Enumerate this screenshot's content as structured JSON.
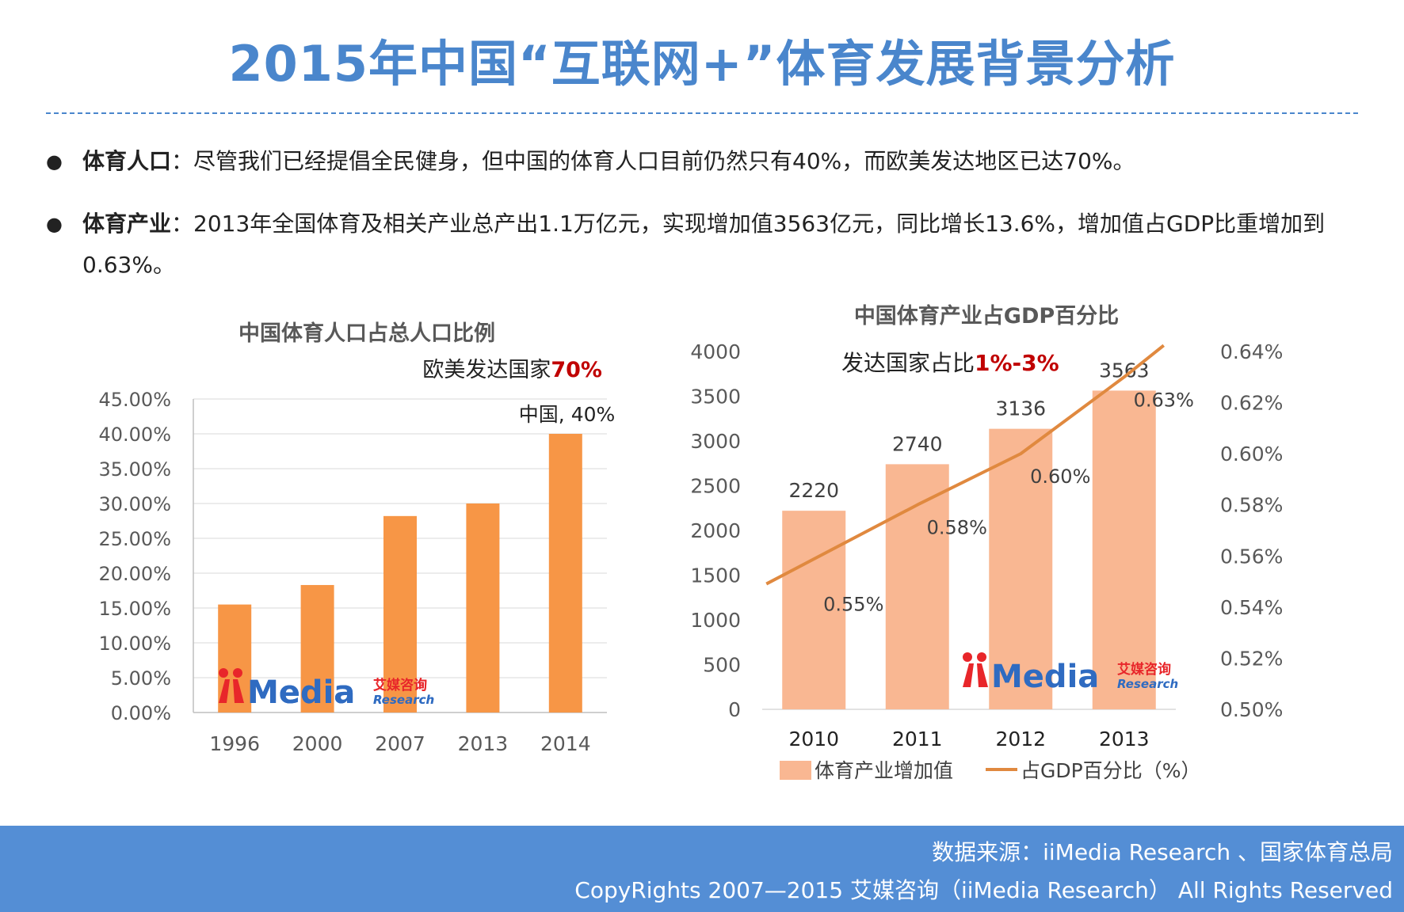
{
  "title": "2015年中国“互联网+”体育发展背景分析",
  "bullets": [
    {
      "label": "体育人口",
      "text": "：尽管我们已经提倡全民健身，但中国的体育人口目前仍然只有40%，而欧美发达地区已达70%。"
    },
    {
      "label": "体育产业",
      "text": "：2013年全国体育及相关产业总产出1.1万亿元，实现增加值3563亿元，同比增长13.6%，增加值占GDP比重增加到0.63%。"
    }
  ],
  "colors": {
    "title": "#4a86cc",
    "bar_left": "#f79646",
    "bar_right": "#f9b792",
    "line": "#e0893f",
    "highlight": "#c00000",
    "footer": "#548ed5"
  },
  "chart_data": [
    {
      "type": "bar",
      "title": "中国体育人口占总人口比例",
      "annotation_prefix": "欧美发达国家",
      "annotation_value": "70%",
      "point_label": "中国, 40%",
      "categories": [
        "1996",
        "2000",
        "2007",
        "2013",
        "2014"
      ],
      "values": [
        15.5,
        18.3,
        28.2,
        30.0,
        40.0
      ],
      "ylim": [
        0,
        45
      ],
      "yticks": [
        "0.00%",
        "5.00%",
        "10.00%",
        "15.00%",
        "20.00%",
        "25.00%",
        "30.00%",
        "35.00%",
        "40.00%",
        "45.00%"
      ],
      "grid": true,
      "logo": {
        "main": "iiMedia",
        "cn": "艾媒咨询",
        "en": "Research"
      }
    },
    {
      "type": "bar+line",
      "title": "中国体育产业占GDP百分比",
      "annotation_prefix": "发达国家占比",
      "annotation_value": "1%-3%",
      "categories": [
        "2010",
        "2011",
        "2012",
        "2013"
      ],
      "bar_series": {
        "name": "体育产业增加值",
        "values": [
          2220,
          2740,
          3136,
          3563
        ],
        "labels": [
          "2220",
          "2740",
          "3136",
          "3563"
        ]
      },
      "line_series": {
        "name": "占GDP百分比（%）",
        "values": [
          0.55,
          0.58,
          0.6,
          0.63
        ],
        "labels": [
          "0.55%",
          "0.58%",
          "0.60%",
          "0.63%"
        ]
      },
      "ylim_left": [
        0,
        4000
      ],
      "yticks_left": [
        "0",
        "500",
        "1000",
        "1500",
        "2000",
        "2500",
        "3000",
        "3500",
        "4000"
      ],
      "ylim_right": [
        0.5,
        0.64
      ],
      "yticks_right": [
        "0.50%",
        "0.52%",
        "0.54%",
        "0.56%",
        "0.58%",
        "0.60%",
        "0.62%",
        "0.64%"
      ],
      "legend": "bottom",
      "logo": {
        "main": "iiMedia",
        "cn": "艾媒咨询",
        "en": "Research"
      }
    }
  ],
  "footer": {
    "source": "数据来源：iiMedia Research 、国家体育总局",
    "copyright": "CopyRights 2007—2015 艾媒咨询（iiMedia Research） All Rights Reserved"
  }
}
